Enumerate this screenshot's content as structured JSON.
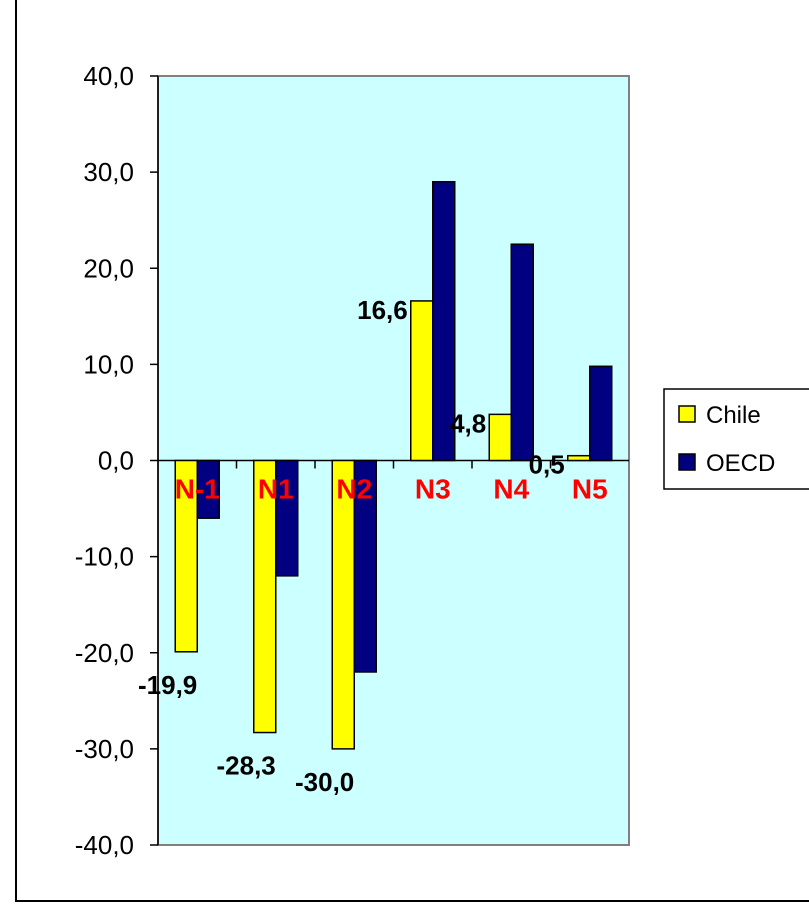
{
  "chart_data": {
    "type": "bar",
    "title": "",
    "xlabel": "",
    "ylabel": "",
    "categories": [
      "N-1",
      "N1",
      "N2",
      "N3",
      "N4",
      "N5"
    ],
    "series": [
      {
        "name": "Chile",
        "color": "#ffff00",
        "values": [
          -19.9,
          -28.3,
          -30.0,
          16.6,
          4.8,
          0.5
        ],
        "data_labels": [
          "-19,9",
          "-28,3",
          "-30,0",
          "16,6",
          "4,8",
          "0,5"
        ]
      },
      {
        "name": "OECD",
        "color": "#000080",
        "values": [
          -6.0,
          -12.0,
          -22.0,
          29.0,
          22.5,
          9.8
        ]
      }
    ],
    "ylim": [
      -40,
      40
    ],
    "yticks": [
      40,
      30,
      20,
      10,
      0,
      -10,
      -20,
      -30,
      -40
    ],
    "ytick_labels": [
      "40,0",
      "30,0",
      "20,0",
      "10,0",
      "0,0",
      "-10,0",
      "-20,0",
      "-30,0",
      "-40,0"
    ],
    "category_label_color": "#ff0000",
    "plot_background": "#ccffff",
    "grid": false,
    "legend_position": "right"
  }
}
